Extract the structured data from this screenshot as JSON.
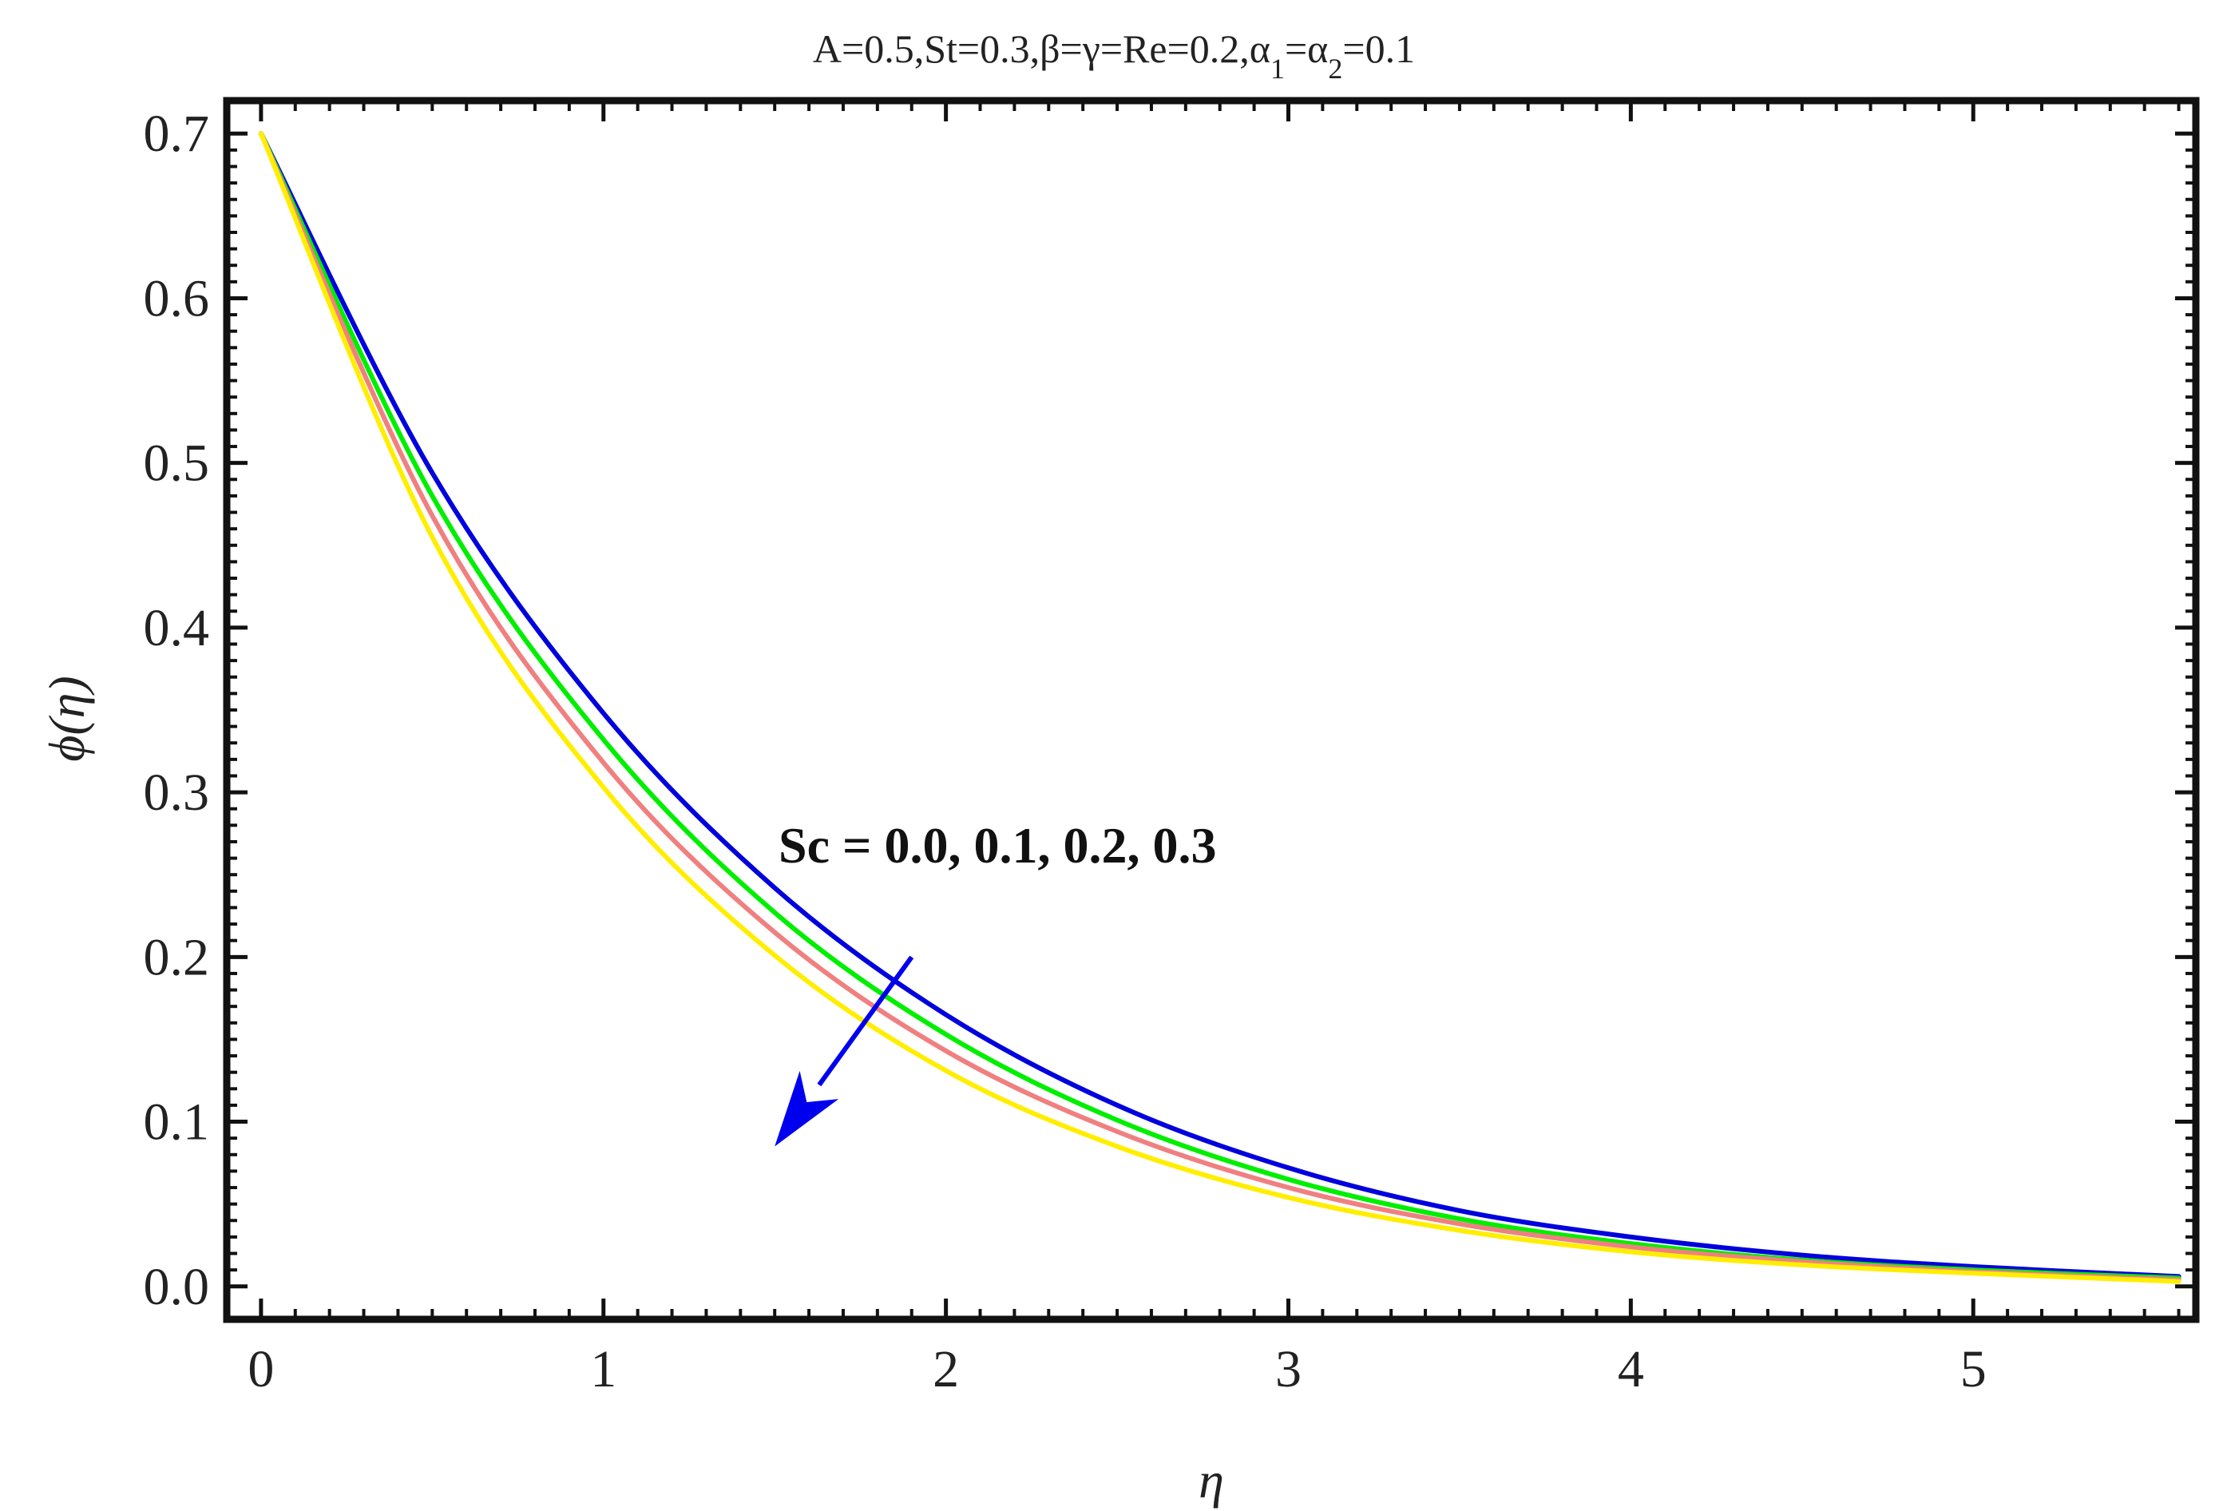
{
  "chart_data": {
    "type": "line",
    "title": "A=0.5,St=0.3,β=γ=Re=0.2,α1=α2=0.1",
    "title_parts": {
      "prefix": "A=0.5,St=0.3,β=γ=Re=0.2,α",
      "sub1": "1",
      "mid": "=α",
      "sub2": "2",
      "suffix": "=0.1"
    },
    "xlabel": "η",
    "ylabel": "ϕ(η)",
    "xlim": [
      -0.1,
      5.65
    ],
    "ylim": [
      -0.02,
      0.72
    ],
    "xticks": [
      0,
      1,
      2,
      3,
      4,
      5
    ],
    "xtick_labels": [
      "0",
      "1",
      "2",
      "3",
      "4",
      "5"
    ],
    "yticks": [
      0.0,
      0.1,
      0.2,
      0.3,
      0.4,
      0.5,
      0.6,
      0.7
    ],
    "ytick_labels": [
      "0.0",
      "0.1",
      "0.2",
      "0.3",
      "0.4",
      "0.5",
      "0.6",
      "0.7"
    ],
    "grid": false,
    "annotation": {
      "text": "Sc = 0.0, 0.1, 0.2, 0.3",
      "arrow_from": [
        1.9,
        0.2
      ],
      "arrow_to": [
        1.5,
        0.085
      ],
      "color": "#0000ee"
    },
    "x": [
      0,
      0.5,
      1,
      1.5,
      2,
      2.5,
      3,
      3.5,
      4,
      4.5,
      5,
      5.6
    ],
    "series": [
      {
        "color": "#0000dd",
        "values": [
          0.7,
          0.494,
          0.348,
          0.242,
          0.165,
          0.11,
          0.072,
          0.046,
          0.03,
          0.019,
          0.012,
          0.006
        ]
      },
      {
        "color": "#00ee00",
        "values": [
          0.7,
          0.48,
          0.332,
          0.227,
          0.153,
          0.101,
          0.065,
          0.041,
          0.026,
          0.016,
          0.01,
          0.005
        ]
      },
      {
        "color": "#f08080",
        "values": [
          0.7,
          0.468,
          0.318,
          0.215,
          0.143,
          0.094,
          0.06,
          0.038,
          0.024,
          0.015,
          0.009,
          0.004
        ]
      },
      {
        "color": "#ffee00",
        "values": [
          0.7,
          0.455,
          0.303,
          0.201,
          0.131,
          0.085,
          0.054,
          0.034,
          0.021,
          0.013,
          0.008,
          0.003
        ]
      }
    ]
  }
}
